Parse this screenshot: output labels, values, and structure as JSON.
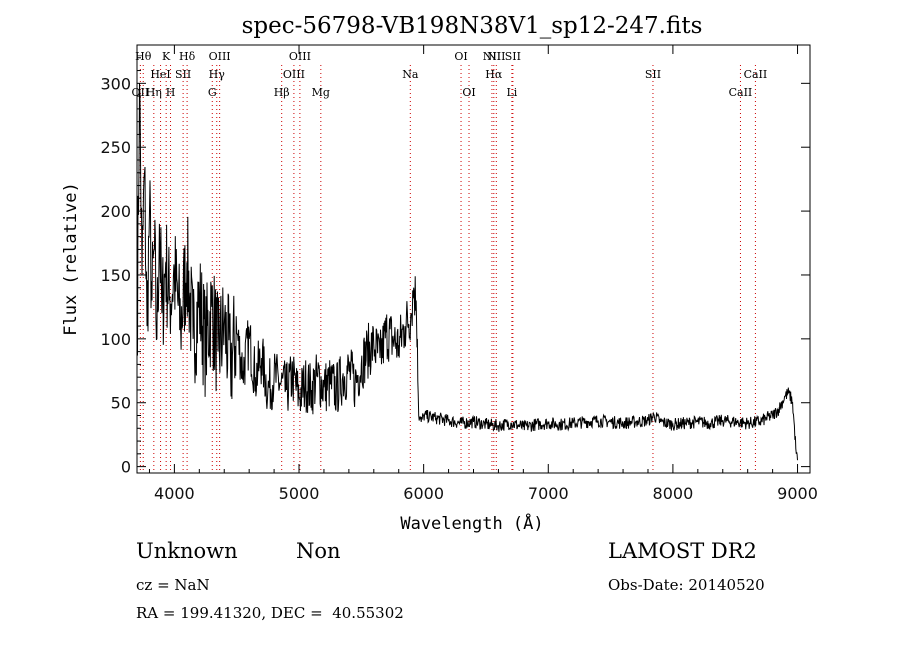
{
  "chart_data": {
    "type": "line",
    "title": "spec-56798-VB198N38V1_sp12-247.fits",
    "xlabel": "Wavelength (Å)",
    "ylabel": "Flux (relative)",
    "xlim": [
      3700,
      9100
    ],
    "ylim": [
      -5,
      330
    ],
    "xticks": [
      4000,
      5000,
      6000,
      7000,
      8000,
      9000
    ],
    "yticks": [
      0,
      50,
      100,
      150,
      200,
      250,
      300
    ],
    "line_color": "#000000",
    "marker_color": "#cc0000",
    "series": [
      {
        "values_note": "",
        "x": [
          3700,
          3720,
          3740,
          3760,
          3780,
          3800,
          3820,
          3840,
          3860,
          3880,
          3900,
          3930,
          3960,
          4000,
          4050,
          4100,
          4150,
          4200,
          4250,
          4300,
          4350,
          4400,
          4450,
          4500,
          4550,
          4600,
          4650,
          4700,
          4750,
          4800,
          4850,
          4900,
          4950,
          5000,
          5050,
          5100,
          5150,
          5200,
          5250,
          5300,
          5350,
          5400,
          5450,
          5500,
          5550,
          5600,
          5650,
          5700,
          5750,
          5800,
          5850,
          5900,
          5920,
          5940,
          5950,
          5960,
          5980,
          6000,
          6100,
          6200,
          6300,
          6400,
          6500,
          6600,
          6700,
          6800,
          6900,
          7000,
          7100,
          7200,
          7300,
          7400,
          7500,
          7600,
          7700,
          7800,
          7850,
          7900,
          8000,
          8100,
          8200,
          8300,
          8400,
          8500,
          8600,
          8700,
          8750,
          8800,
          8850,
          8900,
          8930,
          8960,
          8990,
          9000
        ],
        "y": [
          90,
          300,
          150,
          230,
          110,
          200,
          130,
          170,
          100,
          190,
          120,
          160,
          130,
          150,
          110,
          160,
          100,
          130,
          95,
          125,
          90,
          110,
          80,
          105,
          75,
          100,
          70,
          85,
          60,
          70,
          65,
          60,
          70,
          55,
          65,
          60,
          70,
          62,
          65,
          60,
          70,
          75,
          65,
          80,
          90,
          95,
          85,
          105,
          100,
          95,
          110,
          120,
          140,
          130,
          100,
          40,
          35,
          40,
          38,
          36,
          34,
          35,
          33,
          32,
          34,
          31,
          33,
          34,
          33,
          34,
          35,
          36,
          35,
          34,
          35,
          36,
          40,
          35,
          33,
          34,
          35,
          34,
          36,
          35,
          34,
          35,
          38,
          40,
          45,
          55,
          58,
          50,
          10,
          5
        ]
      }
    ],
    "spectral_lines": [
      {
        "label": "OII",
        "x": 3727,
        "row": 2
      },
      {
        "label": "Hθ",
        "x": 3750,
        "row": 0
      },
      {
        "label": "Hη",
        "x": 3835,
        "row": 2
      },
      {
        "label": "K",
        "x": 3934,
        "row": 0
      },
      {
        "label": "HeI",
        "x": 3889,
        "row": 1
      },
      {
        "label": "H",
        "x": 3969,
        "row": 2
      },
      {
        "label": "SII",
        "x": 4070,
        "row": 1
      },
      {
        "label": "Hδ",
        "x": 4102,
        "row": 0
      },
      {
        "label": "G",
        "x": 4304,
        "row": 2
      },
      {
        "label": "Hγ",
        "x": 4340,
        "row": 1
      },
      {
        "label": "OIII",
        "x": 4363,
        "row": 0
      },
      {
        "label": "Hβ",
        "x": 4861,
        "row": 2
      },
      {
        "label": "OIII",
        "x": 4959,
        "row": 1
      },
      {
        "label": "OIII",
        "x": 5007,
        "row": 0
      },
      {
        "label": "Mg",
        "x": 5175,
        "row": 2
      },
      {
        "label": "Na",
        "x": 5893,
        "row": 1
      },
      {
        "label": "OI",
        "x": 6300,
        "row": 0
      },
      {
        "label": "OI",
        "x": 6364,
        "row": 2
      },
      {
        "label": "NII",
        "x": 6548,
        "row": 0
      },
      {
        "label": "Hα",
        "x": 6563,
        "row": 1
      },
      {
        "label": "NII",
        "x": 6583,
        "row": 0
      },
      {
        "label": "Li",
        "x": 6708,
        "row": 2
      },
      {
        "label": "SII",
        "x": 6716,
        "row": 0
      },
      {
        "label": "SII",
        "x": 7840,
        "row": 1
      },
      {
        "label": "CaII",
        "x": 8542,
        "row": 2
      },
      {
        "label": "CaII",
        "x": 8662,
        "row": 1
      }
    ]
  },
  "info": {
    "class": "Unknown",
    "subclass": "Non",
    "cz": "cz = NaN",
    "radec": "RA = 199.41320, DEC =  40.55302",
    "survey": "LAMOST DR2",
    "obsdate": "Obs-Date: 20140520"
  }
}
